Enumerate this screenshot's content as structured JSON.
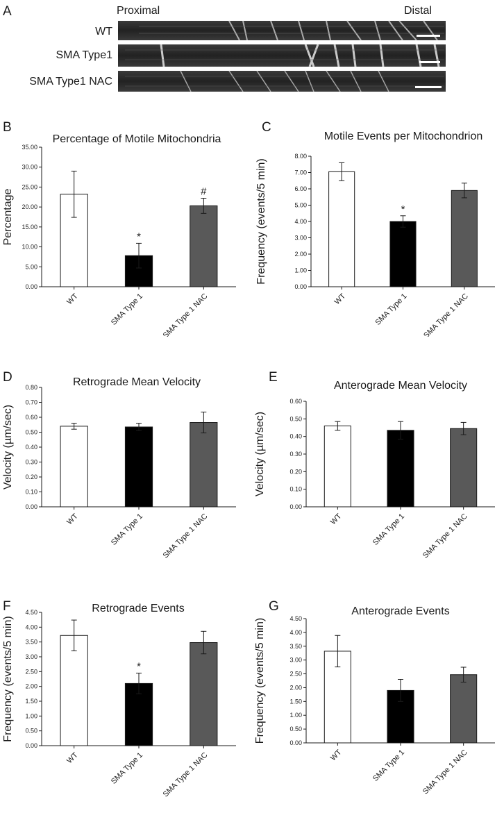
{
  "panel_a": {
    "letter": "A",
    "proximal_label": "Proximal",
    "distal_label": "Distal",
    "rows": [
      {
        "label": "WT"
      },
      {
        "label": "SMA Type1"
      },
      {
        "label": "SMA Type1 NAC"
      }
    ]
  },
  "colors": {
    "wt_bar": "#ffffff",
    "sma_bar": "#000000",
    "nac_bar": "#595959",
    "axis": "#1a1a1a"
  },
  "chart_data": [
    {
      "letter": "B",
      "type": "bar",
      "title": "Percentage of Motile Mitochondria",
      "ylabel": "Percentage",
      "xlabel": "",
      "categories": [
        "WT",
        "SMA Type 1",
        "SMA Type 1 NAC"
      ],
      "values": [
        23.2,
        7.8,
        20.3
      ],
      "errors": [
        5.8,
        3.1,
        1.9
      ],
      "annotations": [
        "",
        "*",
        "#"
      ],
      "ylim": [
        0,
        35
      ],
      "ytick_step": 5,
      "ytick_decimals": 2
    },
    {
      "letter": "C",
      "type": "bar",
      "title": "Motile Events per Mitochondrion",
      "ylabel": "Frequency (events/5 min)",
      "xlabel": "",
      "categories": [
        "WT",
        "SMA Type 1",
        "SMA Type 1 NAC"
      ],
      "values": [
        7.05,
        4.0,
        5.9
      ],
      "errors": [
        0.55,
        0.35,
        0.45
      ],
      "annotations": [
        "",
        "*",
        ""
      ],
      "ylim": [
        0,
        8
      ],
      "ytick_step": 1,
      "ytick_decimals": 2
    },
    {
      "letter": "D",
      "type": "bar",
      "title": "Retrograde Mean Velocity",
      "ylabel": "Velocity (µm/sec)",
      "xlabel": "",
      "categories": [
        "WT",
        "SMA Type 1",
        "SMA Type 1 NAC"
      ],
      "values": [
        0.54,
        0.535,
        0.565
      ],
      "errors": [
        0.02,
        0.025,
        0.07
      ],
      "annotations": [
        "",
        "",
        ""
      ],
      "ylim": [
        0,
        0.8
      ],
      "ytick_step": 0.1,
      "ytick_decimals": 2
    },
    {
      "letter": "E",
      "type": "bar",
      "title": "Anterograde Mean Velocity",
      "ylabel": "Velocity (µm/sec)",
      "xlabel": "",
      "categories": [
        "WT",
        "SMA Type 1",
        "SMA Type 1 NAC"
      ],
      "values": [
        0.46,
        0.435,
        0.445
      ],
      "errors": [
        0.025,
        0.05,
        0.035
      ],
      "annotations": [
        "",
        "",
        ""
      ],
      "ylim": [
        0,
        0.6
      ],
      "ytick_step": 0.1,
      "ytick_decimals": 2
    },
    {
      "letter": "F",
      "type": "bar",
      "title": "Retrograde Events",
      "ylabel": "Frequency (events/5 min)",
      "xlabel": "",
      "categories": [
        "WT",
        "SMA Type 1",
        "SMA Type 1 NAC"
      ],
      "values": [
        3.72,
        2.1,
        3.48
      ],
      "errors": [
        0.52,
        0.35,
        0.38
      ],
      "annotations": [
        "",
        "*",
        ""
      ],
      "ylim": [
        0,
        4.5
      ],
      "ytick_step": 0.5,
      "ytick_decimals": 2
    },
    {
      "letter": "G",
      "type": "bar",
      "title": "Anterograde Events",
      "ylabel": "Frequency (events/5 min)",
      "xlabel": "",
      "categories": [
        "WT",
        "SMA Type 1",
        "SMA Type 1 NAC"
      ],
      "values": [
        3.32,
        1.9,
        2.47
      ],
      "errors": [
        0.57,
        0.4,
        0.27
      ],
      "annotations": [
        "",
        "",
        ""
      ],
      "ylim": [
        0,
        4.5
      ],
      "ytick_step": 0.5,
      "ytick_decimals": 2
    }
  ]
}
